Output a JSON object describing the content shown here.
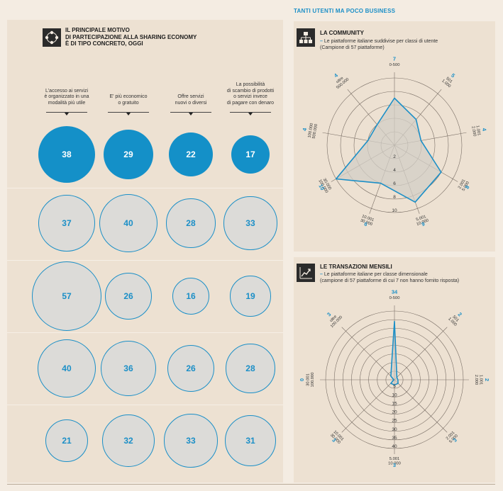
{
  "header": {
    "title": "TANTI UTENTI MA POCO BUSINESS"
  },
  "left": {
    "heading": "IL PRINCIPALE MOTIVO\nDI PARTECIPAZIONE ALLA SHARING ECONOMY\nÈ DI TIPO CONCRETO, OGGI",
    "icon": "people-network-icon",
    "columns": [
      "L'accesso ai servizi\nè organizzato in una\nmodalità più utile",
      "E' più economico\no gratuito",
      "Offre servizi\nnuovi o diversi",
      "La possibilità\ndi scambio di prodotti\no servizi invece\ndi pagare con denaro"
    ]
  },
  "community": {
    "heading": "LA COMMUNITY",
    "icon": "org-chart-icon",
    "subtitle": "Le piattaforme italiane suddivise per classi di utente\n(Campione di 57 piattaforme)"
  },
  "transactions": {
    "heading": "LE TRANSAZIONI MENSILI",
    "icon": "trend-chart-icon",
    "subtitle": "Le piattaforme italiane per classe dimensionale\n(campione di 57 piattaforme di cui 7 non hanno fornito risposta)"
  },
  "colors": {
    "accent": "#1b8fc7",
    "top_fill": "#1490c8",
    "bubble_grey": "#dcdbd8",
    "panel": "#ede1d2"
  },
  "chart_data": [
    {
      "type": "bubble",
      "columns": [
        "L'accesso ai servizi è organizzato in una modalità più utile",
        "E' più economico o gratuito",
        "Offre servizi nuovi o diversi",
        "La possibilità di scambio di prodotti o servizi invece di pagare con denaro"
      ],
      "rows": [
        [
          38,
          29,
          22,
          17
        ],
        [
          37,
          40,
          28,
          33
        ],
        [
          57,
          26,
          16,
          19
        ],
        [
          40,
          36,
          26,
          28
        ],
        [
          21,
          32,
          33,
          31
        ]
      ],
      "highlight_row": 0
    },
    {
      "type": "radar",
      "title": "LA COMMUNITY",
      "axes": [
        {
          "label": "0-500",
          "value": 7
        },
        {
          "label": "501\n1.000",
          "value": 5
        },
        {
          "label": "1.001\n2.000",
          "value": 4
        },
        {
          "label": "2.001\n5.000",
          "value": 8
        },
        {
          "label": "5.001\n10.000",
          "value": 9
        },
        {
          "label": "10.001\n30.000",
          "value": 6
        },
        {
          "label": "30.000\n100.000",
          "value": 10
        },
        {
          "label": "100.000\n500.000",
          "value": 4
        },
        {
          "label": "oltre\n500.000",
          "value": 4
        }
      ],
      "scale_ticks": [
        "2",
        "4",
        "6",
        "8",
        "10"
      ],
      "rmax": 10
    },
    {
      "type": "radar",
      "title": "LE TRANSAZIONI MENSILI",
      "axes": [
        {
          "label": "0-500",
          "value": 34
        },
        {
          "label": "501\n1.000",
          "value": 2
        },
        {
          "label": "1.001\n2.000",
          "value": 2
        },
        {
          "label": "2.001\n5.000",
          "value": 3
        },
        {
          "label": "5.001\n10.000",
          "value": 3
        },
        {
          "label": "10.001\n30.000",
          "value": 3
        },
        {
          "label": "30.001\n100.000",
          "value": 0
        },
        {
          "label": "oltre\n100.000",
          "value": 3
        }
      ],
      "scale_ticks": [
        "5",
        "10",
        "15",
        "20",
        "25",
        "30",
        "35",
        "40"
      ],
      "rmax": 40
    }
  ]
}
